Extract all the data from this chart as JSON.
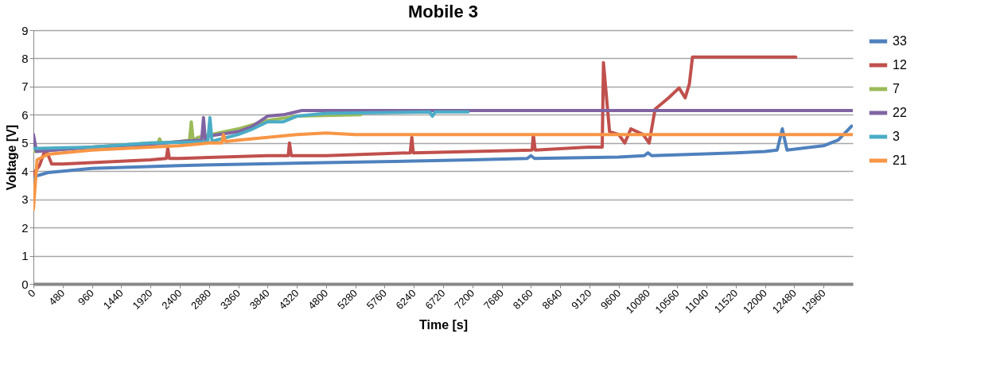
{
  "chart_data": {
    "type": "line",
    "title": "Mobile 3",
    "xlabel": "Time [s]",
    "ylabel": "Voltage [V]",
    "xlim": [
      0,
      13440
    ],
    "xticks": [
      0,
      480,
      960,
      1440,
      1920,
      2400,
      2880,
      3360,
      3840,
      4320,
      4800,
      5280,
      5760,
      6240,
      6720,
      7200,
      7680,
      8160,
      8640,
      9120,
      9600,
      10080,
      10560,
      11040,
      11520,
      12000,
      12480,
      12960
    ],
    "ylim": [
      0,
      9
    ],
    "yticks": [
      0,
      1,
      2,
      3,
      4,
      5,
      6,
      7,
      8,
      9
    ],
    "grid": "y",
    "legend": "right",
    "marker": "none",
    "line_style": "solid",
    "series": [
      {
        "name": "33",
        "color": "#4f81bd",
        "x": [
          0,
          240,
          960,
          2400,
          4800,
          7200,
          8100,
          8160,
          8220,
          9600,
          10020,
          10080,
          10140,
          11520,
          12000,
          12200,
          12284,
          12360,
          12960,
          13200,
          13420
        ],
        "values": [
          3.8,
          3.95,
          4.1,
          4.2,
          4.3,
          4.4,
          4.45,
          4.55,
          4.45,
          4.5,
          4.55,
          4.65,
          4.55,
          4.65,
          4.7,
          4.75,
          5.5,
          4.75,
          4.9,
          5.1,
          5.6
        ]
      },
      {
        "name": "12",
        "color": "#c0504d",
        "x": [
          0,
          100,
          200,
          300,
          480,
          960,
          1920,
          2180,
          2204,
          2230,
          2400,
          3840,
          4180,
          4200,
          4230,
          4800,
          6180,
          6207,
          6230,
          7200,
          8180,
          8200,
          8230,
          9100,
          9330,
          9350,
          9450,
          9600,
          9700,
          9800,
          10000,
          10100,
          10197,
          10420,
          10590,
          10690,
          10760,
          10810,
          12505
        ],
        "values": [
          3.9,
          4.2,
          4.8,
          4.25,
          4.25,
          4.3,
          4.4,
          4.45,
          4.8,
          4.45,
          4.45,
          4.55,
          4.55,
          5.0,
          4.55,
          4.55,
          4.65,
          5.2,
          4.65,
          4.7,
          4.75,
          5.3,
          4.75,
          4.85,
          4.85,
          7.85,
          5.4,
          5.3,
          5.0,
          5.5,
          5.3,
          5.0,
          6.2,
          6.6,
          6.95,
          6.6,
          7.1,
          8.05,
          8.05
        ]
      },
      {
        "name": "7",
        "color": "#9bbb59",
        "x": [
          0,
          960,
          1920,
          2040,
          2070,
          2100,
          2400,
          2560,
          2590,
          2620,
          2700,
          3360,
          3840,
          4320,
          5370
        ],
        "values": [
          4.7,
          4.85,
          5.0,
          5.0,
          5.15,
          5.0,
          5.05,
          5.1,
          5.75,
          5.1,
          5.2,
          5.5,
          5.8,
          5.95,
          6.0
        ]
      },
      {
        "name": "22",
        "color": "#8064a2",
        "x": [
          0,
          50,
          960,
          1920,
          2400,
          2760,
          2790,
          2820,
          2880,
          3360,
          3600,
          3840,
          4100,
          4400,
          13440
        ],
        "values": [
          5.3,
          4.7,
          4.85,
          4.95,
          5.05,
          5.1,
          5.9,
          5.1,
          5.25,
          5.4,
          5.6,
          5.95,
          6.0,
          6.15,
          6.15
        ]
      },
      {
        "name": "3",
        "color": "#4bacc6",
        "x": [
          0,
          960,
          1920,
          2860,
          2895,
          2930,
          3000,
          3360,
          3600,
          3840,
          4100,
          4320,
          4800,
          6500,
          6545,
          6590,
          7130
        ],
        "values": [
          4.8,
          4.85,
          5.0,
          5.05,
          5.9,
          5.05,
          5.1,
          5.3,
          5.5,
          5.75,
          5.75,
          5.95,
          6.05,
          6.1,
          5.95,
          6.1,
          6.1
        ]
      },
      {
        "name": "21",
        "color": "#f79646",
        "x": [
          0,
          60,
          240,
          960,
          1920,
          2400,
          2880,
          3090,
          3117,
          3150,
          3360,
          3840,
          4320,
          4800,
          5280,
          13440
        ],
        "values": [
          2.65,
          4.4,
          4.6,
          4.75,
          4.85,
          4.9,
          5.0,
          5.0,
          5.3,
          5.05,
          5.1,
          5.2,
          5.3,
          5.35,
          5.3,
          5.3
        ]
      }
    ]
  }
}
